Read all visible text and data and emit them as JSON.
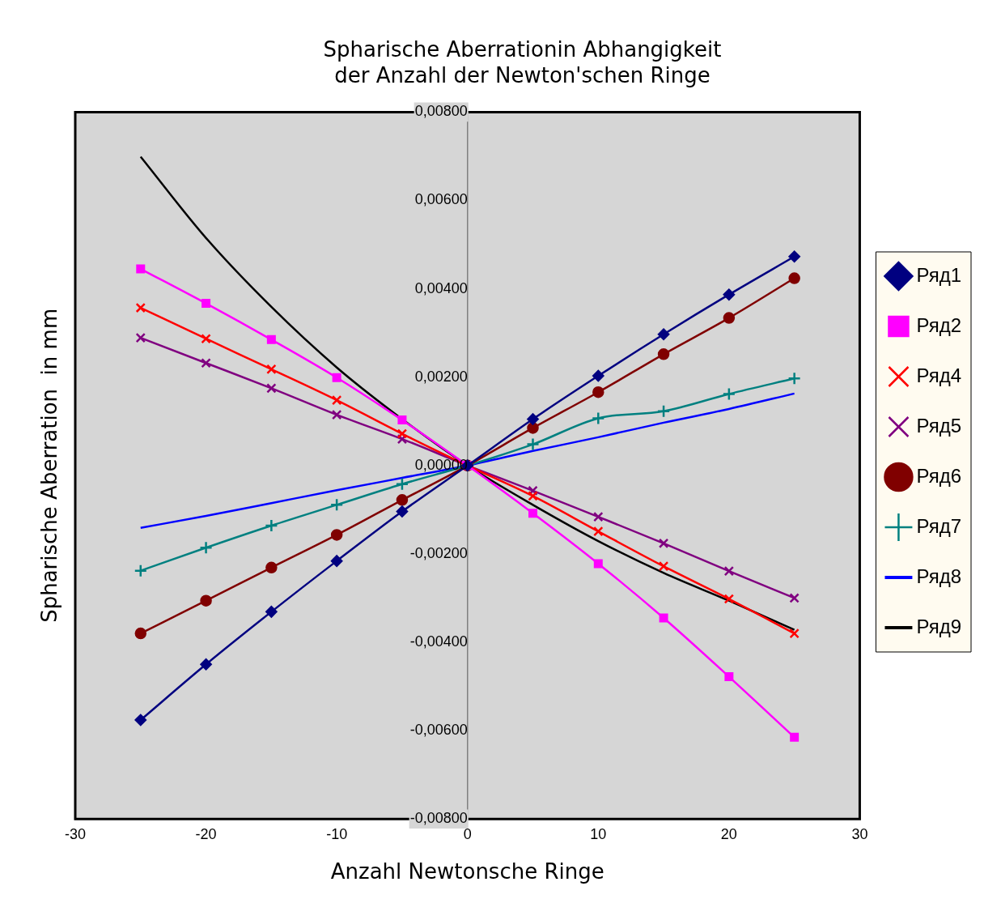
{
  "chart_data": {
    "type": "line",
    "title": "Spharische Aberrationin Abhangigkeit der Anzahl der Newton'schen Ringe",
    "xlabel": "Anzahl Newtonsche Ringe",
    "ylabel": "Spharische Aberration  in mm",
    "x": [
      -25,
      -20,
      -15,
      -10,
      -5,
      0,
      5,
      10,
      15,
      20,
      25
    ],
    "series": [
      {
        "name": "Ряд1",
        "color": "#000080",
        "marker": "diamond",
        "values": [
          -0.00576,
          -0.0045,
          -0.00331,
          -0.00216,
          -0.00104,
          0,
          0.00105,
          0.00203,
          0.00297,
          0.00387,
          0.00473
        ]
      },
      {
        "name": "Ряд2",
        "color": "#ff00ff",
        "marker": "square",
        "values": [
          0.00445,
          0.00367,
          0.00285,
          0.00199,
          0.00103,
          0,
          -0.00108,
          -0.00222,
          -0.00345,
          -0.00478,
          -0.00615
        ]
      },
      {
        "name": "Ряд4",
        "color": "#ff0000",
        "marker": "cross",
        "values": [
          0.00357,
          0.00287,
          0.00218,
          0.00148,
          0.00072,
          0,
          -0.00069,
          -0.00149,
          -0.00228,
          -0.00302,
          -0.0038
        ]
      },
      {
        "name": "Ряд5",
        "color": "#800080",
        "marker": "cross",
        "values": [
          0.00289,
          0.00232,
          0.00175,
          0.00115,
          0.0006,
          0,
          -0.00057,
          -0.00116,
          -0.00176,
          -0.00239,
          -0.003
        ]
      },
      {
        "name": "Ряд6",
        "color": "#800000",
        "marker": "circle",
        "values": [
          -0.0038,
          -0.00306,
          -0.00231,
          -0.00157,
          -0.00078,
          0,
          0.00085,
          0.00166,
          0.00252,
          0.00334,
          0.00424
        ]
      },
      {
        "name": "Ряд7",
        "color": "#008080",
        "marker": "plus",
        "values": [
          -0.00238,
          -0.00186,
          -0.00136,
          -0.00089,
          -0.00042,
          0,
          0.00048,
          0.00107,
          0.00123,
          0.00162,
          0.00197
        ]
      },
      {
        "name": "Ряд8",
        "color": "#0000ff",
        "values": [
          -0.00141,
          -0.00114,
          -0.00085,
          -0.00056,
          -0.00028,
          0,
          0.00033,
          0.00064,
          0.00097,
          0.00128,
          0.00163
        ]
      },
      {
        "name": "Ряд9",
        "color": "#000000",
        "values": [
          0.00699,
          0.00515,
          0.00359,
          0.00222,
          0.00105,
          0,
          -0.00089,
          -0.00171,
          -0.00243,
          -0.00306,
          -0.00372
        ]
      }
    ],
    "xlim": [
      -30,
      30
    ],
    "xticks": [
      -30,
      -20,
      -10,
      0,
      10,
      20,
      30
    ],
    "ylim": [
      -0.008,
      0.008
    ],
    "yticks": [
      {
        "value": -0.008,
        "label": "-0,00800"
      },
      {
        "value": -0.006,
        "label": "-0,00600"
      },
      {
        "value": -0.004,
        "label": "-0,00400"
      },
      {
        "value": -0.002,
        "label": "-0,00200"
      },
      {
        "value": 0,
        "label": "0,00000"
      },
      {
        "value": 0.002,
        "label": "0,00200"
      },
      {
        "value": 0.004,
        "label": "0,00400"
      },
      {
        "value": 0.006,
        "label": "0,00600"
      },
      {
        "value": 0.008,
        "label": "0,00800"
      }
    ],
    "grid": false,
    "legend": "right",
    "line_style": "solid"
  }
}
